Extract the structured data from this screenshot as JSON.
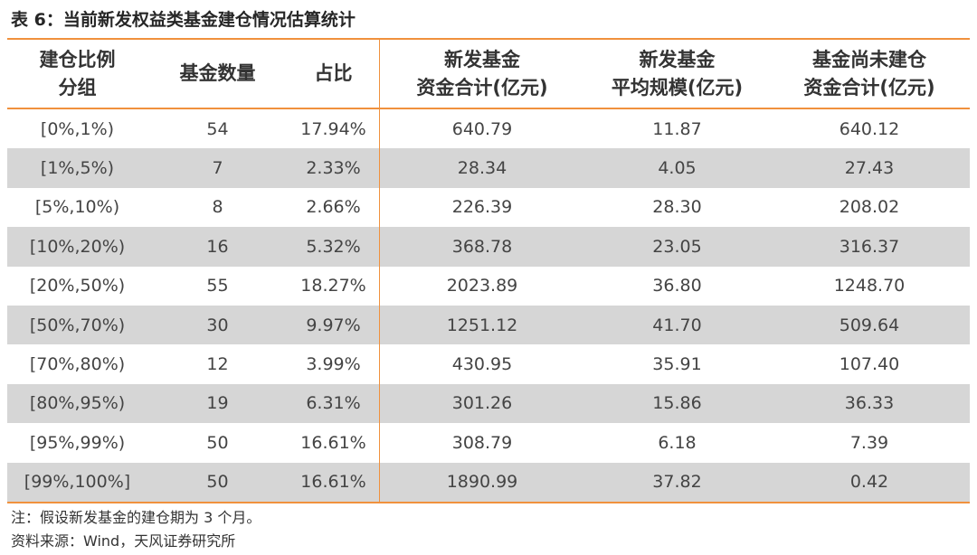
{
  "title": "表 6：当前新发权益类基金建仓情况估算统计",
  "table": {
    "headers": [
      [
        "建仓比例",
        "分组"
      ],
      [
        "基金数量"
      ],
      [
        "占比"
      ],
      [
        "新发基金",
        "资金合计(亿元)"
      ],
      [
        "新发基金",
        "平均规模(亿元)"
      ],
      [
        "基金尚未建仓",
        "资金合计(亿元)"
      ]
    ],
    "rows": [
      [
        "[0%,1%)",
        "54",
        "17.94%",
        "640.79",
        "11.87",
        "640.12"
      ],
      [
        "[1%,5%)",
        "7",
        "2.33%",
        "28.34",
        "4.05",
        "27.43"
      ],
      [
        "[5%,10%)",
        "8",
        "2.66%",
        "226.39",
        "28.30",
        "208.02"
      ],
      [
        "[10%,20%)",
        "16",
        "5.32%",
        "368.78",
        "23.05",
        "316.37"
      ],
      [
        "[20%,50%)",
        "55",
        "18.27%",
        "2023.89",
        "36.80",
        "1248.70"
      ],
      [
        "[50%,70%)",
        "30",
        "9.97%",
        "1251.12",
        "41.70",
        "509.64"
      ],
      [
        "[70%,80%)",
        "12",
        "3.99%",
        "430.95",
        "35.91",
        "107.40"
      ],
      [
        "[80%,95%)",
        "19",
        "6.31%",
        "301.26",
        "15.86",
        "36.33"
      ],
      [
        "[95%,99%)",
        "50",
        "16.61%",
        "308.79",
        "6.18",
        "7.39"
      ],
      [
        "[99%,100%]",
        "50",
        "16.61%",
        "1890.99",
        "37.82",
        "0.42"
      ]
    ]
  },
  "notes": {
    "note1": "注：假设新发基金的建仓期为 3 个月。",
    "source": "资料来源：Wind，天风证券研究所"
  },
  "colors": {
    "accent_rule": "#F0913D",
    "row_shade": "#D6D6D6"
  }
}
